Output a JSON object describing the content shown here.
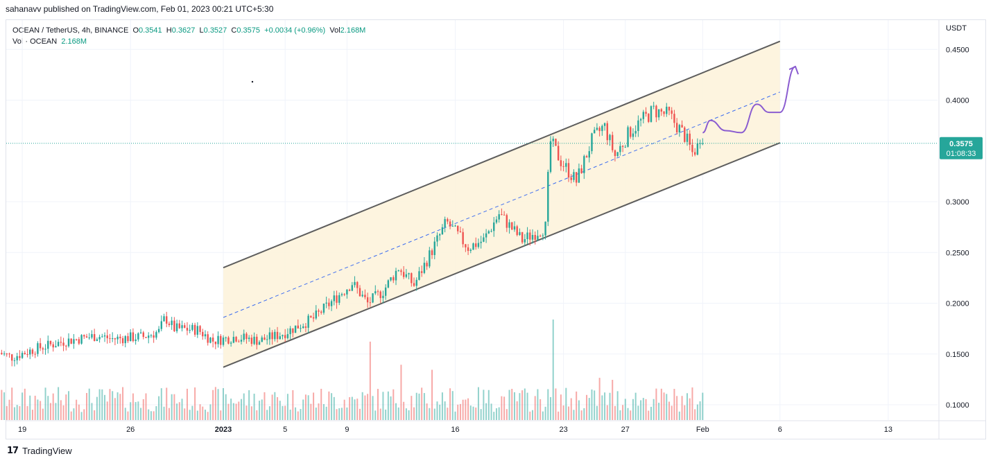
{
  "header": {
    "published": "sahanavv published on TradingView.com, Feb 01, 2023 00:21 UTC+5:30"
  },
  "legend": {
    "symbol": "OCEAN / TetherUS, 4h, BINANCE",
    "o_label": "O",
    "o": "0.3541",
    "h_label": "H",
    "h": "0.3627",
    "l_label": "L",
    "l": "0.3527",
    "c_label": "C",
    "c": "0.3575",
    "change": "+0.0034 (+0.96%)",
    "vol_label": "Vol",
    "vol": "2.168M",
    "vol_series_label": "Vol · OCEAN",
    "vol_series_value": "2.168M"
  },
  "footer": {
    "brand": "TradingView"
  },
  "colors": {
    "up": "#26a69a",
    "down": "#ef5350",
    "channel_fill": "#fdf3dc",
    "channel_line": "#5d5d5d",
    "median_line": "#3d6df0",
    "projection": "#8a5cd0",
    "price_tag": "#26a69a"
  },
  "chart_data": {
    "type": "line",
    "title": "OCEAN / TetherUS, 4h, BINANCE",
    "currency": "USDT",
    "ylim": [
      0.085,
      0.47
    ],
    "y_ticks": [
      "0.4500",
      "0.4000",
      "0.3000",
      "0.2500",
      "0.2000",
      "0.1500",
      "0.1000"
    ],
    "x_ticks": [
      "19",
      "26",
      "2023",
      "5",
      "9",
      "16",
      "23",
      "27",
      "Feb",
      "6",
      "13"
    ],
    "x_tick_days": [
      -13,
      -6,
      0,
      4,
      8,
      15,
      22,
      26,
      31,
      36,
      43
    ],
    "last_price": "0.3575",
    "countdown": "01:08:33",
    "price_path": [
      {
        "day": -14.5,
        "price": 0.152
      },
      {
        "day": -13.5,
        "price": 0.147
      },
      {
        "day": -12,
        "price": 0.155
      },
      {
        "day": -10,
        "price": 0.163
      },
      {
        "day": -8,
        "price": 0.168
      },
      {
        "day": -7,
        "price": 0.165
      },
      {
        "day": -5,
        "price": 0.167
      },
      {
        "day": -4,
        "price": 0.172
      },
      {
        "day": -3.6,
        "price": 0.186
      },
      {
        "day": -3,
        "price": 0.175
      },
      {
        "day": -1.5,
        "price": 0.174
      },
      {
        "day": -0.5,
        "price": 0.163
      },
      {
        "day": 1,
        "price": 0.167
      },
      {
        "day": 2.5,
        "price": 0.163
      },
      {
        "day": 4,
        "price": 0.17
      },
      {
        "day": 6,
        "price": 0.185
      },
      {
        "day": 8.5,
        "price": 0.22
      },
      {
        "day": 9.5,
        "price": 0.2
      },
      {
        "day": 10.5,
        "price": 0.212
      },
      {
        "day": 11.5,
        "price": 0.235
      },
      {
        "day": 12.5,
        "price": 0.218
      },
      {
        "day": 14,
        "price": 0.262
      },
      {
        "day": 14.6,
        "price": 0.28
      },
      {
        "day": 16,
        "price": 0.255
      },
      {
        "day": 17,
        "price": 0.262
      },
      {
        "day": 18,
        "price": 0.288
      },
      {
        "day": 19.5,
        "price": 0.262
      },
      {
        "day": 21,
        "price": 0.275
      },
      {
        "day": 21.3,
        "price": 0.36
      },
      {
        "day": 22,
        "price": 0.34
      },
      {
        "day": 23,
        "price": 0.32
      },
      {
        "day": 24,
        "price": 0.36
      },
      {
        "day": 24.8,
        "price": 0.375
      },
      {
        "day": 25.5,
        "price": 0.345
      },
      {
        "day": 26.5,
        "price": 0.37
      },
      {
        "day": 28,
        "price": 0.39
      },
      {
        "day": 29,
        "price": 0.385
      },
      {
        "day": 30,
        "price": 0.365
      },
      {
        "day": 30.5,
        "price": 0.348
      },
      {
        "day": 31,
        "price": 0.3575
      }
    ],
    "channel": {
      "upper": {
        "start": {
          "day": 0,
          "price": 0.235
        },
        "end": {
          "day": 36,
          "price": 0.458
        }
      },
      "lower": {
        "start": {
          "day": 0,
          "price": 0.137
        },
        "end": {
          "day": 36,
          "price": 0.358
        }
      },
      "median": {
        "start": {
          "day": 0,
          "price": 0.186
        },
        "end": {
          "day": 36,
          "price": 0.408
        }
      }
    },
    "projection": [
      {
        "day": 31,
        "price": 0.368
      },
      {
        "day": 31.5,
        "price": 0.38
      },
      {
        "day": 32.5,
        "price": 0.37
      },
      {
        "day": 33.5,
        "price": 0.368
      },
      {
        "day": 34.5,
        "price": 0.396
      },
      {
        "day": 35.3,
        "price": 0.388
      },
      {
        "day": 36,
        "price": 0.388
      },
      {
        "day": 37,
        "price": 0.433
      }
    ],
    "volume_peaks": [
      {
        "day": 9.5,
        "rel": 0.78
      },
      {
        "day": 11.5,
        "rel": 0.55
      },
      {
        "day": 13.5,
        "rel": 0.5
      },
      {
        "day": 21.3,
        "rel": 1.0
      },
      {
        "day": 24.3,
        "rel": 0.42
      },
      {
        "day": 25.1,
        "rel": 0.4
      }
    ]
  }
}
